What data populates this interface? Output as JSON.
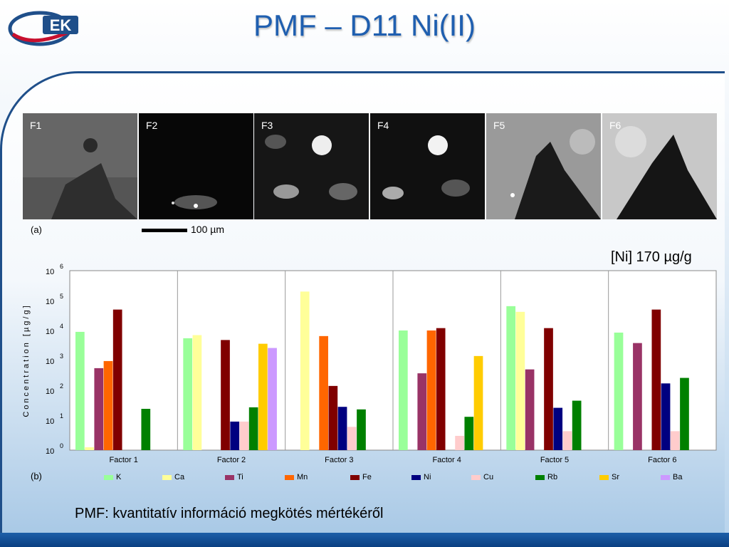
{
  "slide": {
    "title": "PMF – D11 Ni(II)",
    "logo_text": "EK",
    "map_labels": [
      "F1",
      "F2",
      "F3",
      "F4",
      "F5",
      "F6"
    ],
    "panel_a_label": "(a)",
    "scale_bar_label": "100 µm",
    "ni_concentration": "[Ni] 170 µg/g",
    "panel_b_label": "(b)",
    "footer": "PMF: kvantitatív információ megkötés mértékéről"
  },
  "colors": {
    "title": "#1f5fb0",
    "K": "#99ff99",
    "Ca": "#ffff99",
    "Ti": "#993366",
    "Mn": "#ff6600",
    "Fe": "#800000",
    "Ni": "#000080",
    "Cu": "#ffcccc",
    "Rb": "#008000",
    "Sr": "#ffcc00",
    "Ba": "#cc99ff"
  },
  "chart_data": {
    "type": "bar",
    "ylabel": "Concentration [µg/g]",
    "yscale": "log",
    "ylim": [
      1,
      1000000
    ],
    "y_tick_labels": [
      {
        "base": "10",
        "exp": "0"
      },
      {
        "base": "10",
        "exp": "1"
      },
      {
        "base": "10",
        "exp": "2"
      },
      {
        "base": "10",
        "exp": "3"
      },
      {
        "base": "10",
        "exp": "4"
      },
      {
        "base": "10",
        "exp": "5"
      },
      {
        "base": "10",
        "exp": "6"
      }
    ],
    "categories": [
      "Factor 1",
      "Factor 2",
      "Factor 3",
      "Factor 4",
      "Factor 5",
      "Factor 6"
    ],
    "legend_position": "bottom",
    "series": [
      {
        "name": "K",
        "color": "#99ff99",
        "values": [
          9000,
          5500,
          null,
          10000,
          65000,
          8500
        ]
      },
      {
        "name": "Ca",
        "color": "#ffff99",
        "values": [
          1.25,
          7000,
          200000,
          null,
          42000,
          null
        ]
      },
      {
        "name": "Ti",
        "color": "#993366",
        "values": [
          550,
          null,
          null,
          370,
          500,
          3800
        ]
      },
      {
        "name": "Mn",
        "color": "#ff6600",
        "values": [
          950,
          null,
          6500,
          10000,
          null,
          null
        ]
      },
      {
        "name": "Fe",
        "color": "#800000",
        "values": [
          50000,
          4800,
          140,
          12000,
          12000,
          50000
        ]
      },
      {
        "name": "Ni",
        "color": "#000080",
        "values": [
          null,
          9,
          28,
          null,
          26,
          170
        ]
      },
      {
        "name": "Cu",
        "color": "#ffcccc",
        "values": [
          null,
          9,
          6,
          3,
          4.3,
          4.3
        ]
      },
      {
        "name": "Rb",
        "color": "#008000",
        "values": [
          24,
          27,
          23,
          13,
          45,
          260
        ]
      },
      {
        "name": "Sr",
        "color": "#ffcc00",
        "values": [
          null,
          3600,
          null,
          1400,
          null,
          null
        ]
      },
      {
        "name": "Ba",
        "color": "#cc99ff",
        "values": [
          null,
          2600,
          null,
          null,
          null,
          null
        ]
      }
    ]
  }
}
